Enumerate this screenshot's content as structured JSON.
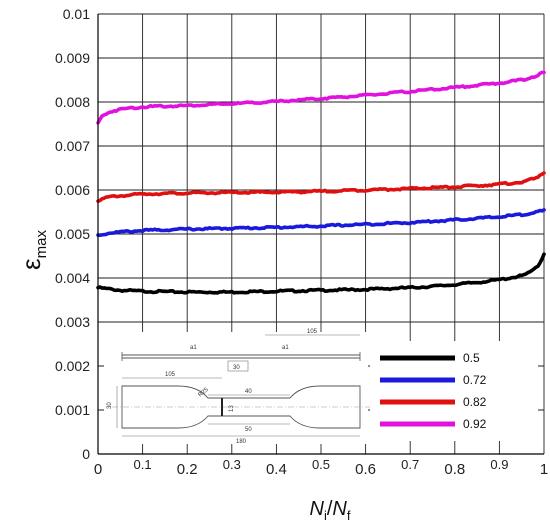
{
  "chart_data": {
    "type": "line",
    "xlabel": {
      "main": "N",
      "sub1": "i",
      "slash": "/",
      "main2": "N",
      "sub2": "f"
    },
    "ylabel": {
      "main": "ε",
      "sub": "max"
    },
    "xlim": [
      0,
      1
    ],
    "ylim": [
      0,
      0.01
    ],
    "x_ticks_major": [
      "0",
      "0.2",
      "0.4",
      "0.6",
      "0.8",
      "1"
    ],
    "x_ticks_minor": [
      "0.1",
      "0.3",
      "0.5",
      "0.7",
      "0.9"
    ],
    "y_ticks": [
      "0",
      "0.001",
      "0.002",
      "0.003",
      "0.004",
      "0.005",
      "0.006",
      "0.007",
      "0.008",
      "0.009",
      "0.01"
    ],
    "grid": true,
    "legend_position": "bottom-right",
    "series": [
      {
        "name": "0.5",
        "color": "#000000",
        "x": [
          0,
          0.05,
          0.1,
          0.15,
          0.2,
          0.25,
          0.3,
          0.35,
          0.4,
          0.45,
          0.5,
          0.55,
          0.6,
          0.65,
          0.7,
          0.75,
          0.8,
          0.85,
          0.9,
          0.95,
          0.97,
          0.99,
          1.0
        ],
        "y": [
          0.00378,
          0.00372,
          0.0037,
          0.00369,
          0.00368,
          0.00368,
          0.00368,
          0.00369,
          0.0037,
          0.00371,
          0.00372,
          0.00373,
          0.00374,
          0.00376,
          0.00378,
          0.00381,
          0.00385,
          0.0039,
          0.00396,
          0.00405,
          0.00413,
          0.00432,
          0.00455
        ]
      },
      {
        "name": "0.72",
        "color": "#1a1adc",
        "x": [
          0,
          0.03,
          0.1,
          0.2,
          0.3,
          0.4,
          0.5,
          0.6,
          0.7,
          0.8,
          0.9,
          0.95,
          1.0
        ],
        "y": [
          0.00497,
          0.00503,
          0.00508,
          0.00511,
          0.00513,
          0.00515,
          0.00518,
          0.00522,
          0.00526,
          0.00532,
          0.00539,
          0.00544,
          0.00553
        ]
      },
      {
        "name": "0.82",
        "color": "#e01010",
        "x": [
          0,
          0.03,
          0.1,
          0.2,
          0.3,
          0.4,
          0.5,
          0.6,
          0.7,
          0.8,
          0.9,
          0.95,
          0.98,
          1.0
        ],
        "y": [
          0.00577,
          0.00585,
          0.00591,
          0.00593,
          0.00594,
          0.00595,
          0.00597,
          0.006,
          0.00603,
          0.00607,
          0.00613,
          0.00618,
          0.00626,
          0.0064
        ]
      },
      {
        "name": "0.92",
        "color": "#e012e0",
        "x": [
          0,
          0.01,
          0.03,
          0.06,
          0.1,
          0.2,
          0.3,
          0.4,
          0.5,
          0.6,
          0.7,
          0.8,
          0.9,
          0.95,
          0.98,
          1.0
        ],
        "y": [
          0.00752,
          0.00769,
          0.00779,
          0.00785,
          0.00789,
          0.00792,
          0.00796,
          0.00801,
          0.00808,
          0.00815,
          0.00824,
          0.00833,
          0.00843,
          0.0085,
          0.00859,
          0.00867
        ]
      }
    ]
  },
  "inset_drawing": {
    "dimensions": [
      "105",
      "105",
      "30",
      "30",
      "40",
      "50",
      "180",
      "a1",
      "a1",
      "R25",
      "13"
    ]
  }
}
